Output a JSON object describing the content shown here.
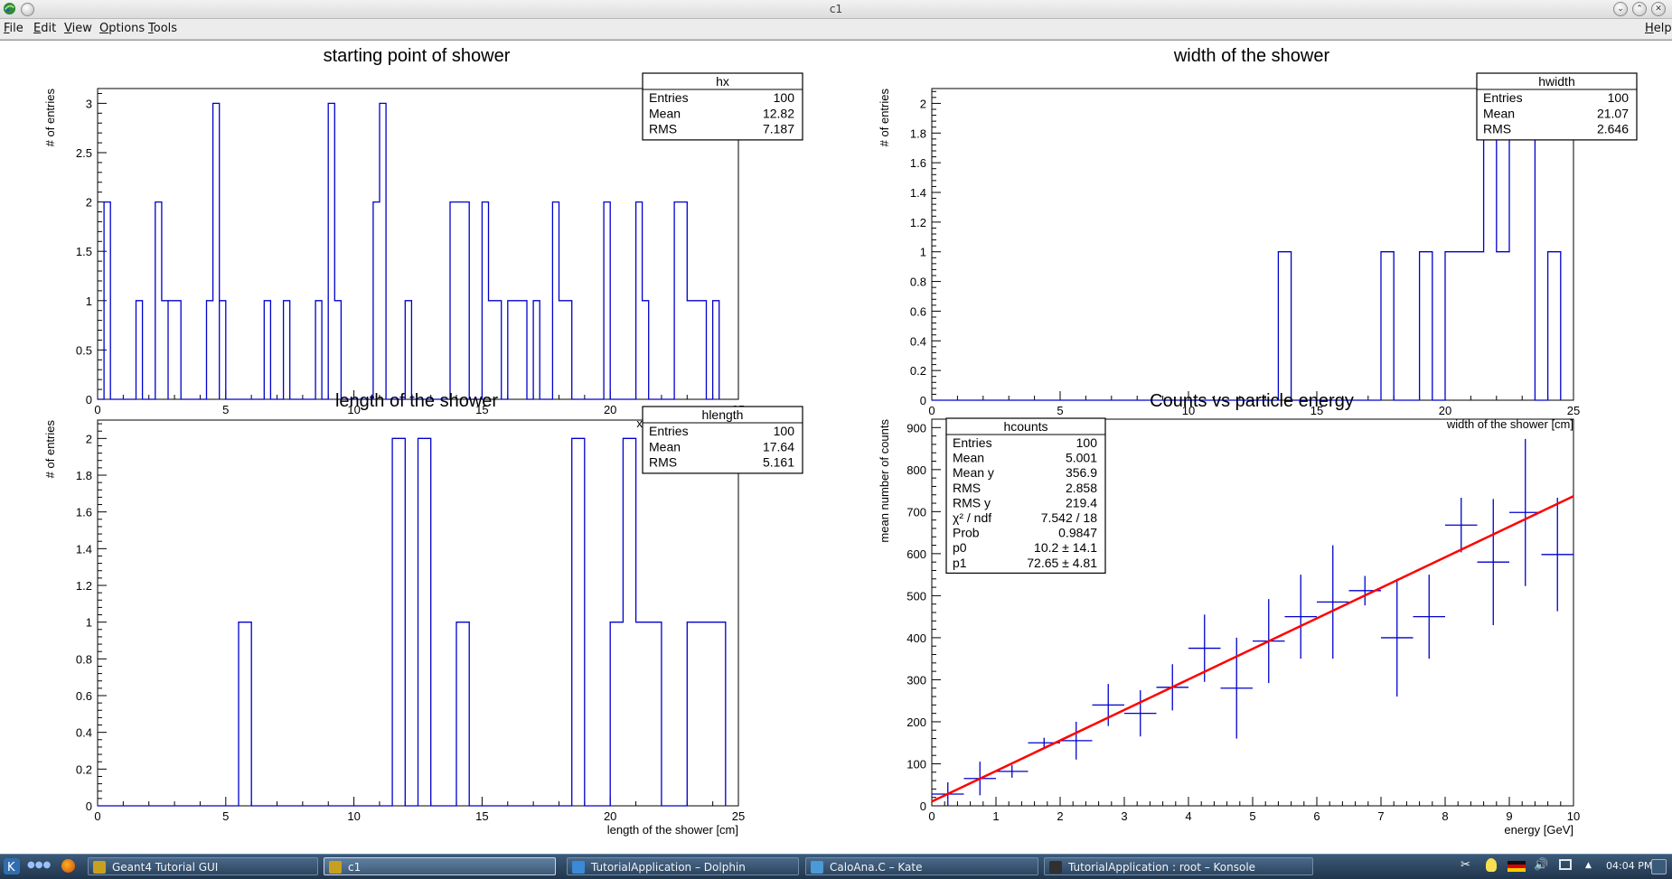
{
  "window": {
    "title": "c1"
  },
  "menu": {
    "file": "File",
    "edit": "Edit",
    "view": "View",
    "options": "Options",
    "tools": "Tools",
    "help": "Help"
  },
  "taskbar": {
    "apps": [
      {
        "label": "Geant4 Tutorial GUI",
        "color": "#c8a020"
      },
      {
        "label": "c1",
        "color": "#c8a020",
        "active": true
      },
      {
        "label": "TutorialApplication – Dolphin",
        "color": "#3a8ad8"
      },
      {
        "label": "CaloAna.C – Kate",
        "color": "#4a9ad8"
      },
      {
        "label": "TutorialApplication : root – Konsole",
        "color": "#303030"
      }
    ],
    "clock": "04:04 PM"
  },
  "chart_data": [
    {
      "type": "histogram",
      "title": "starting point of shower",
      "xlabel": "x of first vertex [cm]",
      "ylabel": "# of entries",
      "xlim": [
        0,
        25
      ],
      "ylim": [
        0,
        3.15
      ],
      "xticks": [
        "0",
        "5",
        "10",
        "15",
        "20",
        "25"
      ],
      "yticks": [
        {
          "v": 0,
          "label": "0"
        },
        {
          "v": 0.5,
          "label": "0.5"
        },
        {
          "v": 1,
          "label": "1"
        },
        {
          "v": 1.5,
          "label": "1.5"
        },
        {
          "v": 2,
          "label": "2"
        },
        {
          "v": 2.5,
          "label": "2.5"
        },
        {
          "v": 3,
          "label": "3"
        }
      ],
      "bin_width": 0.25,
      "bins": [
        [
          0.25,
          2
        ],
        [
          0.5,
          0
        ],
        [
          1.5,
          1
        ],
        [
          1.75,
          0
        ],
        [
          2.25,
          2
        ],
        [
          2.5,
          1
        ],
        [
          2.75,
          0
        ],
        [
          2.75,
          1
        ],
        [
          3.25,
          0
        ],
        [
          4.25,
          1
        ],
        [
          4.5,
          3
        ],
        [
          4.75,
          0
        ],
        [
          4.75,
          1
        ],
        [
          5.0,
          0
        ],
        [
          6.5,
          1
        ],
        [
          6.75,
          0
        ],
        [
          7.25,
          1
        ],
        [
          7.5,
          0
        ],
        [
          8.5,
          1
        ],
        [
          8.75,
          0
        ],
        [
          9.0,
          3
        ],
        [
          9.25,
          1
        ],
        [
          9.5,
          0
        ],
        [
          10.75,
          2
        ],
        [
          11.0,
          3
        ],
        [
          11.25,
          0
        ],
        [
          12.0,
          1
        ],
        [
          12.25,
          0
        ],
        [
          13.75,
          2
        ],
        [
          14.5,
          0
        ],
        [
          15.0,
          2
        ],
        [
          15.25,
          1
        ],
        [
          15.75,
          0
        ],
        [
          16.0,
          1
        ],
        [
          16.75,
          0
        ],
        [
          17.0,
          1
        ],
        [
          17.25,
          0
        ],
        [
          17.75,
          2
        ],
        [
          18.0,
          1
        ],
        [
          18.5,
          0
        ],
        [
          19.75,
          2
        ],
        [
          20.0,
          0
        ],
        [
          21.0,
          2
        ],
        [
          21.25,
          1
        ],
        [
          21.5,
          0
        ],
        [
          22.5,
          2
        ],
        [
          23.0,
          1
        ],
        [
          23.75,
          0
        ],
        [
          24.0,
          1
        ],
        [
          24.25,
          0
        ]
      ],
      "stats": {
        "name": "hx",
        "rows": [
          {
            "k": "Entries",
            "v": "100"
          },
          {
            "k": "Mean",
            "v": "12.82"
          },
          {
            "k": "RMS",
            "v": "7.187"
          }
        ]
      }
    },
    {
      "type": "histogram",
      "title": "width of the shower",
      "xlabel": "width of the shower [cm]",
      "ylabel": "# of entries",
      "xlim": [
        0,
        25
      ],
      "ylim": [
        0,
        2.1
      ],
      "xticks": [
        "0",
        "5",
        "10",
        "15",
        "20",
        "25"
      ],
      "yticks": [
        {
          "v": 0,
          "label": "0"
        },
        {
          "v": 0.2,
          "label": "0.2"
        },
        {
          "v": 0.4,
          "label": "0.4"
        },
        {
          "v": 0.6,
          "label": "0.6"
        },
        {
          "v": 0.8,
          "label": "0.8"
        },
        {
          "v": 1.0,
          "label": "1"
        },
        {
          "v": 1.2,
          "label": "1.2"
        },
        {
          "v": 1.4,
          "label": "1.4"
        },
        {
          "v": 1.6,
          "label": "1.6"
        },
        {
          "v": 1.8,
          "label": "1.8"
        },
        {
          "v": 2.0,
          "label": "2"
        }
      ],
      "bin_width": 0.5,
      "bins": [
        [
          13.5,
          1
        ],
        [
          14.0,
          0
        ],
        [
          17.5,
          1
        ],
        [
          18.0,
          0
        ],
        [
          19.0,
          1
        ],
        [
          19.5,
          0
        ],
        [
          20.0,
          1
        ],
        [
          21.5,
          2
        ],
        [
          22.0,
          1
        ],
        [
          22.5,
          2
        ],
        [
          23.5,
          0
        ],
        [
          24.0,
          1
        ],
        [
          24.5,
          0
        ]
      ],
      "stats": {
        "name": "hwidth",
        "rows": [
          {
            "k": "Entries",
            "v": "100"
          },
          {
            "k": "Mean",
            "v": "21.07"
          },
          {
            "k": "RMS",
            "v": "2.646"
          }
        ]
      }
    },
    {
      "type": "histogram",
      "title": "length of the shower",
      "xlabel": "length of the shower [cm]",
      "ylabel": "# of entries",
      "xlim": [
        0,
        25
      ],
      "ylim": [
        0,
        2.1
      ],
      "xticks": [
        "0",
        "5",
        "10",
        "15",
        "20",
        "25"
      ],
      "yticks": [
        {
          "v": 0,
          "label": "0"
        },
        {
          "v": 0.2,
          "label": "0.2"
        },
        {
          "v": 0.4,
          "label": "0.4"
        },
        {
          "v": 0.6,
          "label": "0.6"
        },
        {
          "v": 0.8,
          "label": "0.8"
        },
        {
          "v": 1.0,
          "label": "1"
        },
        {
          "v": 1.2,
          "label": "1.2"
        },
        {
          "v": 1.4,
          "label": "1.4"
        },
        {
          "v": 1.6,
          "label": "1.6"
        },
        {
          "v": 1.8,
          "label": "1.8"
        },
        {
          "v": 2.0,
          "label": "2"
        }
      ],
      "bin_width": 0.5,
      "bins": [
        [
          5.5,
          1
        ],
        [
          6.0,
          0
        ],
        [
          11.5,
          2
        ],
        [
          12.0,
          0
        ],
        [
          12.5,
          2
        ],
        [
          13.0,
          0
        ],
        [
          14.0,
          1
        ],
        [
          14.5,
          0
        ],
        [
          18.5,
          2
        ],
        [
          19.0,
          0
        ],
        [
          20.0,
          1
        ],
        [
          20.5,
          2
        ],
        [
          21.0,
          1
        ],
        [
          22.0,
          0
        ],
        [
          23.0,
          1
        ],
        [
          24.5,
          0
        ]
      ],
      "stats": {
        "name": "hlength",
        "rows": [
          {
            "k": "Entries",
            "v": "100"
          },
          {
            "k": "Mean",
            "v": "17.64"
          },
          {
            "k": "RMS",
            "v": "5.161"
          }
        ]
      }
    },
    {
      "type": "scatter",
      "title": "Counts vs particle energy",
      "xlabel": "energy [GeV]",
      "ylabel": "mean number of counts",
      "xlim": [
        0,
        10
      ],
      "ylim": [
        0,
        920
      ],
      "xticks": [
        "0",
        "1",
        "2",
        "3",
        "4",
        "5",
        "6",
        "7",
        "8",
        "9",
        "10"
      ],
      "yticks": [
        {
          "v": 0,
          "label": "0"
        },
        {
          "v": 100,
          "label": "100"
        },
        {
          "v": 200,
          "label": "200"
        },
        {
          "v": 300,
          "label": "300"
        },
        {
          "v": 400,
          "label": "400"
        },
        {
          "v": 500,
          "label": "500"
        },
        {
          "v": 600,
          "label": "600"
        },
        {
          "v": 700,
          "label": "700"
        },
        {
          "v": 800,
          "label": "800"
        },
        {
          "v": 900,
          "label": "900"
        }
      ],
      "points": [
        {
          "x": 0.25,
          "y": 28,
          "yerr": 28,
          "xerr": 0.25
        },
        {
          "x": 0.75,
          "y": 65,
          "yerr": 40,
          "xerr": 0.25
        },
        {
          "x": 1.25,
          "y": 82,
          "yerr": 15,
          "xerr": 0.25
        },
        {
          "x": 1.75,
          "y": 150,
          "yerr": 12,
          "xerr": 0.25
        },
        {
          "x": 2.25,
          "y": 155,
          "yerr": 45,
          "xerr": 0.25
        },
        {
          "x": 2.75,
          "y": 240,
          "yerr": 50,
          "xerr": 0.25
        },
        {
          "x": 3.25,
          "y": 220,
          "yerr": 55,
          "xerr": 0.25
        },
        {
          "x": 3.75,
          "y": 282,
          "yerr": 55,
          "xerr": 0.25
        },
        {
          "x": 4.25,
          "y": 375,
          "yerr": 80,
          "xerr": 0.25
        },
        {
          "x": 4.75,
          "y": 280,
          "yerr": 120,
          "xerr": 0.25
        },
        {
          "x": 5.25,
          "y": 392,
          "yerr": 100,
          "xerr": 0.25
        },
        {
          "x": 5.75,
          "y": 450,
          "yerr": 100,
          "xerr": 0.25
        },
        {
          "x": 6.25,
          "y": 485,
          "yerr": 135,
          "xerr": 0.25
        },
        {
          "x": 6.75,
          "y": 512,
          "yerr": 35,
          "xerr": 0.25
        },
        {
          "x": 7.25,
          "y": 400,
          "yerr": 140,
          "xerr": 0.25
        },
        {
          "x": 7.75,
          "y": 450,
          "yerr": 100,
          "xerr": 0.25
        },
        {
          "x": 8.25,
          "y": 668,
          "yerr": 65,
          "xerr": 0.25
        },
        {
          "x": 8.75,
          "y": 580,
          "yerr": 150,
          "xerr": 0.25
        },
        {
          "x": 9.25,
          "y": 698,
          "yerr": 175,
          "xerr": 0.25
        },
        {
          "x": 9.75,
          "y": 598,
          "yerr": 135,
          "xerr": 0.25
        }
      ],
      "fit": {
        "p0": 10.2,
        "p1": 72.65,
        "x_range": [
          0,
          10
        ],
        "color": "#ff0000"
      },
      "stats": {
        "name": "hcounts",
        "rows": [
          {
            "k": "Entries",
            "v": "100"
          },
          {
            "k": "Mean",
            "v": "5.001"
          },
          {
            "k": "Mean y",
            "v": "356.9"
          },
          {
            "k": "RMS",
            "v": "2.858"
          },
          {
            "k": "RMS y",
            "v": "219.4"
          },
          {
            "k": "χ² / ndf",
            "v": "7.542 / 18"
          },
          {
            "k": "Prob",
            "v": "0.9847"
          },
          {
            "k": "p0",
            "v": "10.2 ± 14.1"
          },
          {
            "k": "p1",
            "v": "72.65 ± 4.81"
          }
        ]
      }
    }
  ]
}
